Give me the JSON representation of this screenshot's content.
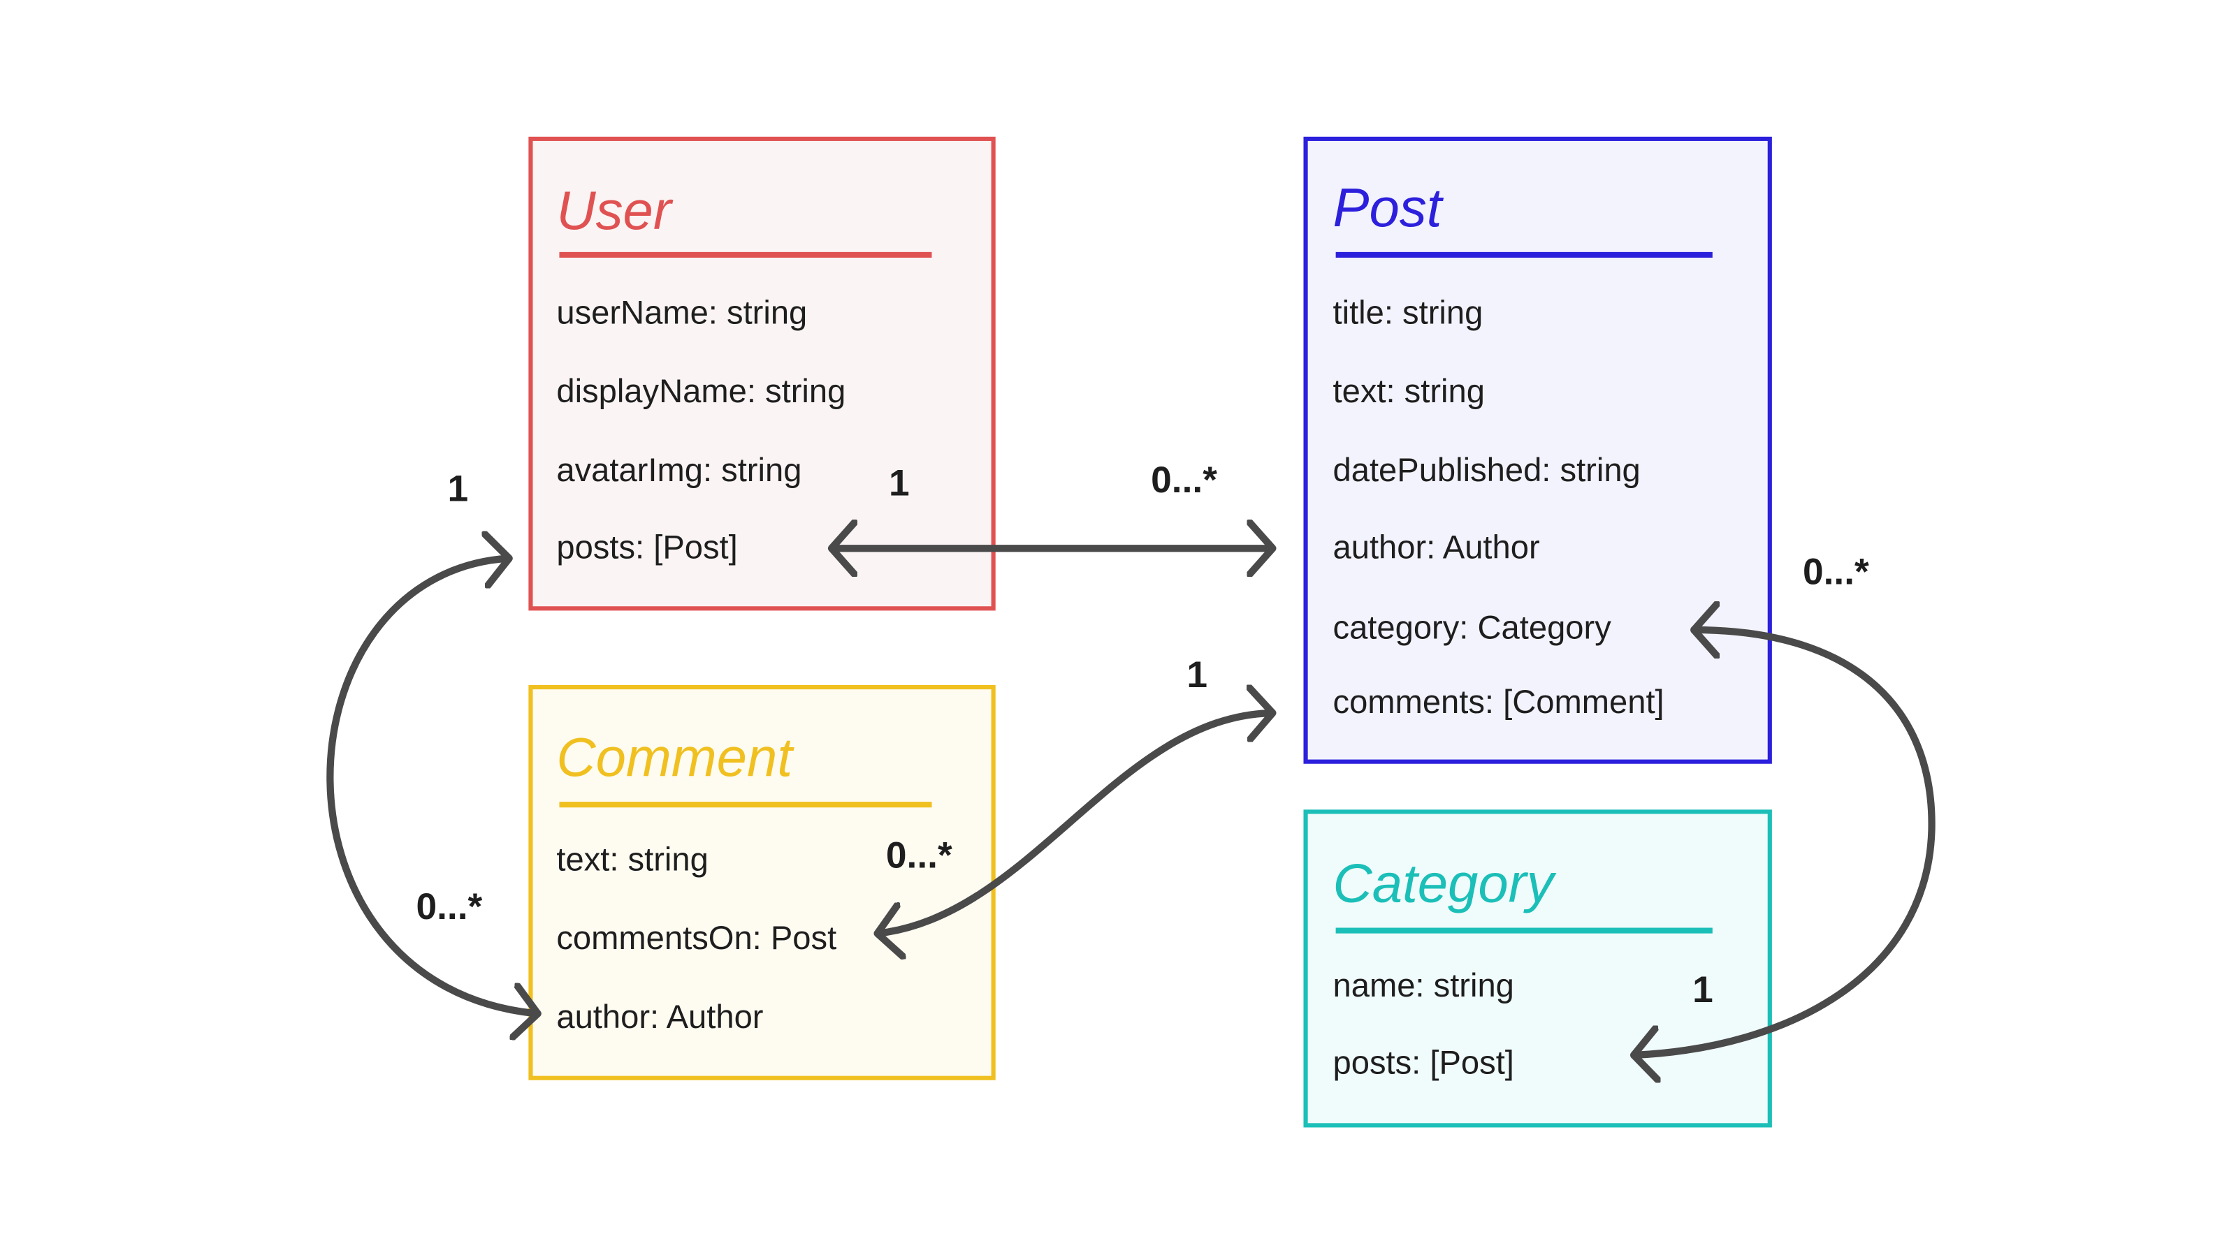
{
  "entities": {
    "user": {
      "title": "User",
      "color": "#e05252",
      "fill": "#fbf4f4",
      "fields": [
        "userName: string",
        "displayName: string",
        "avatarImg: string",
        "posts: [Post]"
      ]
    },
    "post": {
      "title": "Post",
      "color": "#2c20dc",
      "fill": "#f3f3fd",
      "fields": [
        "title: string",
        "text: string",
        "datePublished: string",
        "author: Author",
        "category: Category",
        "comments: [Comment]"
      ]
    },
    "comment": {
      "title": "Comment",
      "color": "#f0c020",
      "fill": "#fefbf1",
      "fields": [
        "text: string",
        "commentsOn: Post",
        "author: Author"
      ]
    },
    "category": {
      "title": "Category",
      "color": "#1bbfb8",
      "fill": "#f0fbfb",
      "fields": [
        "name: string",
        "posts: [Post]"
      ]
    }
  },
  "relationships": [
    {
      "from": "User.posts",
      "to": "Post.author",
      "from_mult": "1",
      "to_mult": "0...*"
    },
    {
      "from": "User",
      "to": "Comment.author",
      "from_mult": "1",
      "to_mult": "0...*"
    },
    {
      "from": "Comment.commentsOn",
      "to": "Post.comments",
      "from_mult": "0...*",
      "to_mult": "1"
    },
    {
      "from": "Post.category",
      "to": "Category.posts",
      "from_mult": "0...*",
      "to_mult": "1"
    }
  ],
  "connector_color": "#4a4a4a"
}
